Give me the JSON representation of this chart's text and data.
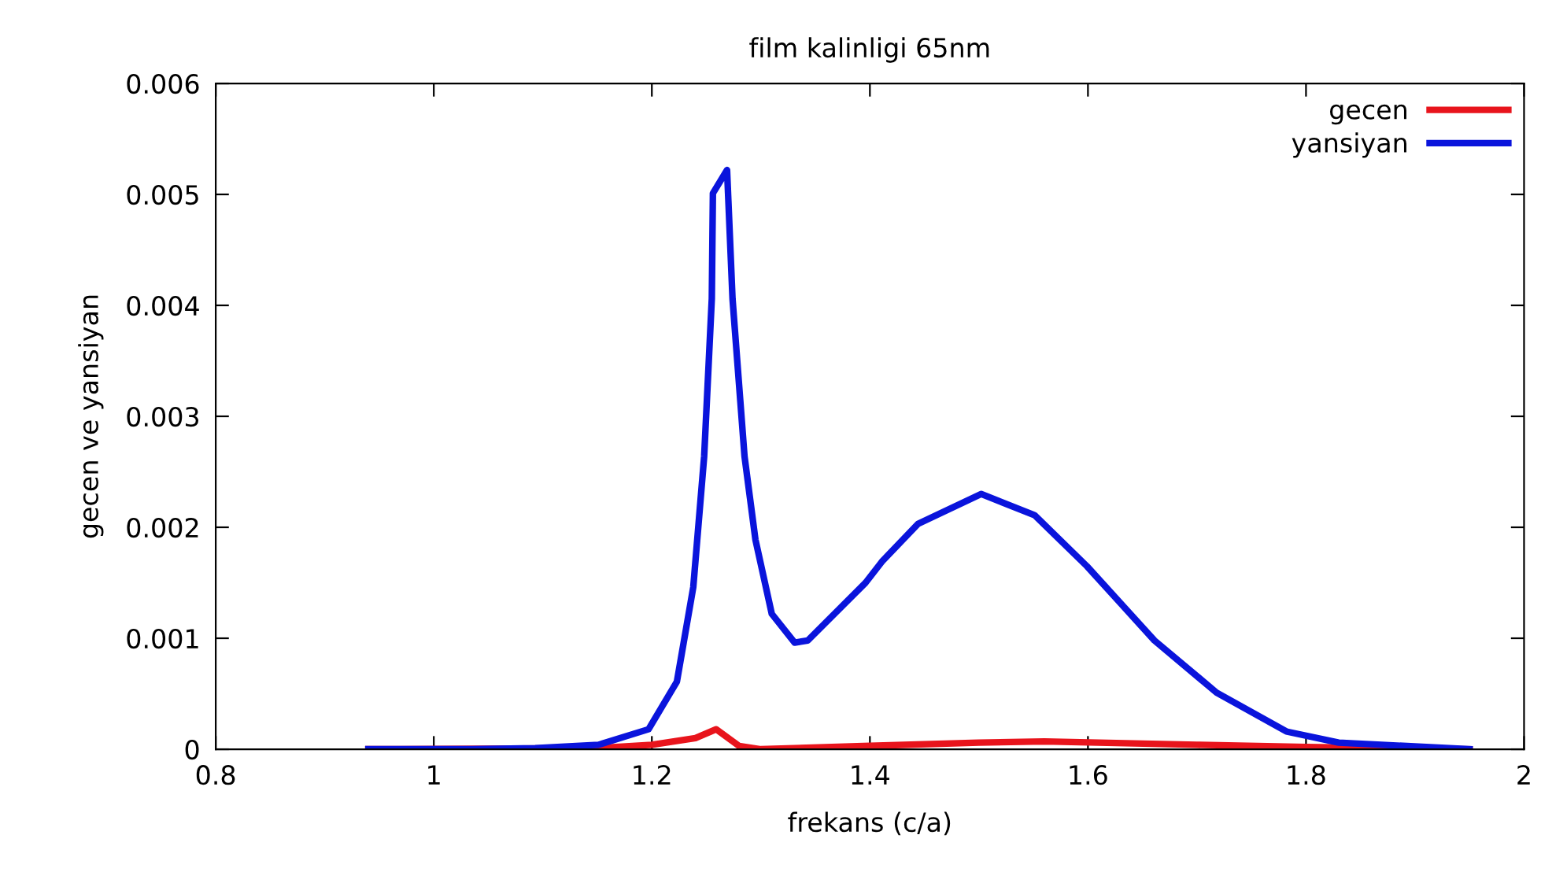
{
  "chart_data": {
    "type": "line",
    "title": "film kalinligi 65nm",
    "xlabel": "frekans (c/a)",
    "ylabel": "gecen ve yansiyan",
    "xlim": [
      0.8,
      2
    ],
    "xticks": [
      0.8,
      1,
      1.2,
      1.4,
      1.6,
      1.8,
      2
    ],
    "ylim": [
      0,
      0.006
    ],
    "yticks": [
      0,
      0.001,
      0.002,
      0.003,
      0.004,
      0.005,
      0.006
    ],
    "grid": false,
    "legend": "top right",
    "marker": "none",
    "line_style": "solid",
    "series": [
      {
        "name": "gecen",
        "color": "#e8141c",
        "x": [
          0.94,
          1.15,
          1.2,
          1.24,
          1.259,
          1.28,
          1.3,
          1.4,
          1.5,
          1.56,
          1.7,
          1.8,
          1.95
        ],
        "values": [
          0,
          1e-05,
          4e-05,
          0.0001,
          0.00018,
          3e-05,
          0,
          3e-05,
          6e-05,
          7e-05,
          4e-05,
          2e-05,
          0
        ]
      },
      {
        "name": "yansiyan",
        "color": "#0a14dc",
        "x": [
          0.94,
          1.035,
          1.093,
          1.151,
          1.197,
          1.223,
          1.238,
          1.248,
          1.255,
          1.256,
          1.269,
          1.274,
          1.285,
          1.295,
          1.31,
          1.331,
          1.343,
          1.396,
          1.411,
          1.444,
          1.502,
          1.551,
          1.599,
          1.661,
          1.718,
          1.782,
          1.83,
          1.95
        ],
        "values": [
          0,
          0,
          1e-05,
          4e-05,
          0.00018,
          0.00061,
          0.00146,
          0.00264,
          0.00406,
          0.00501,
          0.00522,
          0.00406,
          0.00264,
          0.00189,
          0.00122,
          0.00096,
          0.00098,
          0.0015,
          0.00169,
          0.00203,
          0.0023,
          0.00211,
          0.00165,
          0.00098,
          0.00051,
          0.00016,
          6e-05,
          0
        ]
      }
    ]
  }
}
